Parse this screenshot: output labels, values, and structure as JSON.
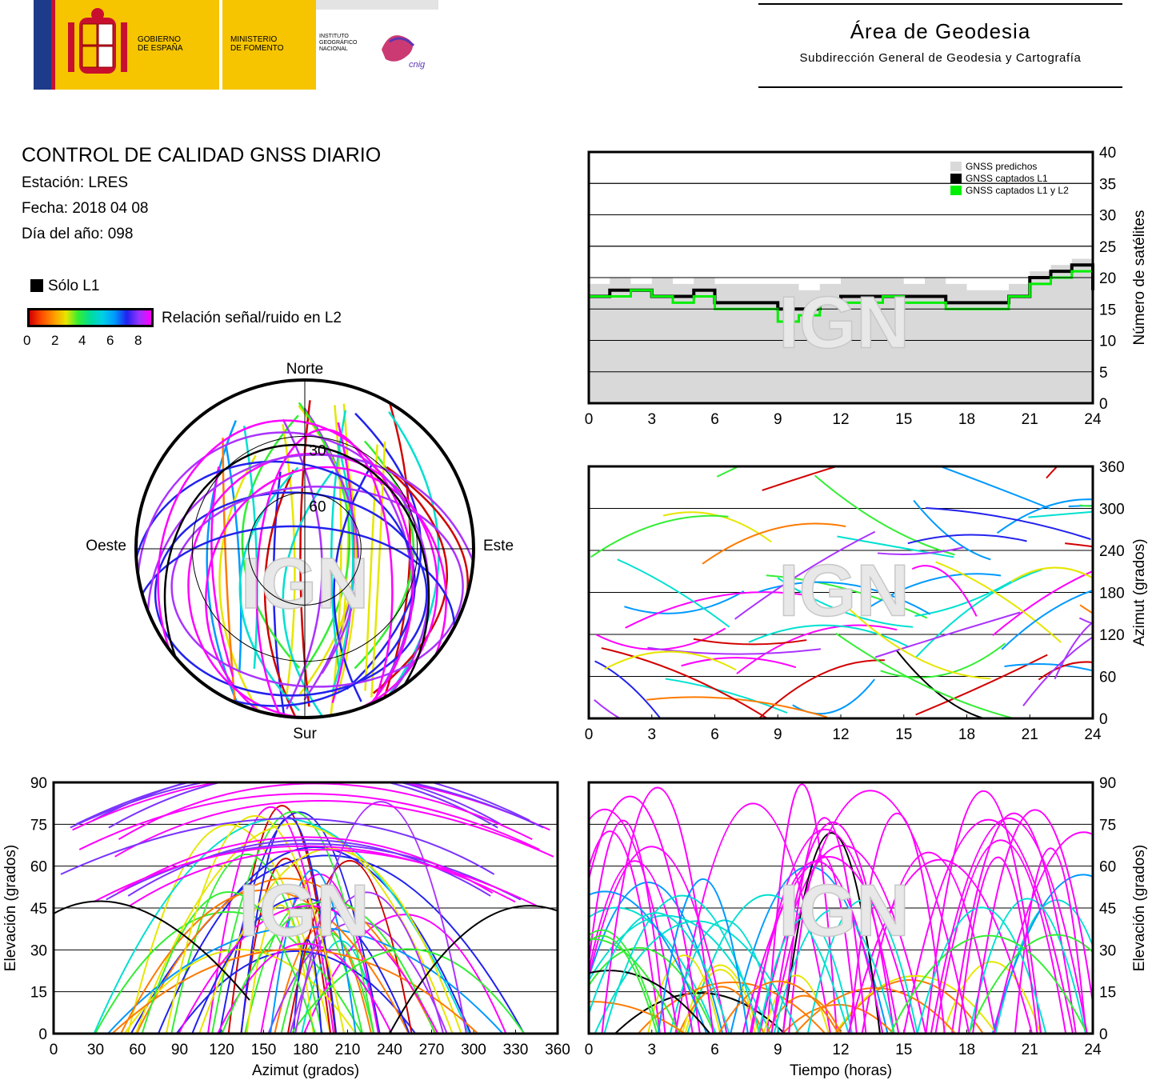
{
  "header": {
    "org1": [
      "GOBIERNO",
      "DE ESPAÑA"
    ],
    "org2": [
      "MINISTERIO",
      "DE FOMENTO"
    ],
    "org3": [
      "INSTITUTO",
      "GEOGRÁFICO",
      "NACIONAL"
    ],
    "logo_text": "cnig",
    "area_title": "Área de Geodesia",
    "area_subtitle": "Subdirección General de Geodesia y Cartografía"
  },
  "report": {
    "title": "CONTROL DE CALIDAD GNSS DIARIO",
    "station": "Estación: LRES",
    "date": "Fecha: 2018 04 08",
    "doy": "Día del año: 098",
    "legend_l1": "Sólo L1",
    "colorbar_label": "Relación señal/ruido en L2",
    "colorbar_ticks": [
      "0",
      "2",
      "4",
      "6",
      "8"
    ],
    "watermark": "IGN"
  },
  "colors": {
    "predicted": "#d9d9d9",
    "l1": "#000000",
    "l1l2": "#00ee00",
    "snr_palette": [
      "#d20000",
      "#ff7a00",
      "#e6e600",
      "#33ee33",
      "#00e0d0",
      "#0099ff",
      "#2222ee",
      "#aa33ff",
      "#ff00ff"
    ]
  },
  "chart_data": [
    {
      "id": "sat-count",
      "type": "area",
      "ylabel": "Número de satélites",
      "xlim": [
        0,
        24
      ],
      "ylim": [
        0,
        40
      ],
      "xticks": [
        "0",
        "3",
        "6",
        "9",
        "12",
        "15",
        "18",
        "21",
        "24"
      ],
      "yticks": [
        "0",
        "5",
        "10",
        "15",
        "20",
        "25",
        "30",
        "35",
        "40"
      ],
      "grid": true,
      "legend_position": "top-right",
      "x": [
        0,
        1,
        2,
        3,
        4,
        5,
        6,
        7,
        8,
        9,
        10,
        11,
        12,
        13,
        14,
        15,
        16,
        17,
        18,
        19,
        20,
        21,
        22,
        23,
        24
      ],
      "series": [
        {
          "name": "GNSS predichos",
          "values": [
            19,
            20,
            19,
            20,
            19,
            20,
            19,
            19,
            19,
            19,
            18,
            19,
            20,
            20,
            20,
            19,
            20,
            19,
            18,
            18,
            19,
            21,
            22,
            23,
            21
          ]
        },
        {
          "name": "GNSS captados L1",
          "values": [
            17,
            18,
            18,
            17,
            17,
            18,
            16,
            16,
            16,
            15,
            15,
            16,
            17,
            17,
            17,
            17,
            17,
            16,
            16,
            16,
            17,
            20,
            21,
            22,
            18
          ]
        },
        {
          "name": "GNSS captados L1 y L2",
          "values": [
            17,
            17,
            18,
            17,
            16,
            17,
            15,
            15,
            15,
            13,
            14,
            16,
            16,
            16,
            17,
            16,
            16,
            15,
            15,
            15,
            17,
            19,
            20,
            21,
            18
          ]
        }
      ]
    },
    {
      "id": "skyplot",
      "type": "scatter",
      "labels": {
        "north": "Norte",
        "south": "Sur",
        "east": "Este",
        "west": "Oeste"
      },
      "rings": [
        "30",
        "60"
      ],
      "note": "polar plot of satellite tracks colored by SNR"
    },
    {
      "id": "azimuth-time",
      "type": "scatter",
      "ylabel": "Azimut (grados)",
      "xlim": [
        0,
        24
      ],
      "ylim": [
        0,
        360
      ],
      "xticks": [
        "0",
        "3",
        "6",
        "9",
        "12",
        "15",
        "18",
        "21",
        "24"
      ],
      "yticks": [
        "0",
        "60",
        "120",
        "180",
        "240",
        "300",
        "360"
      ],
      "grid": true
    },
    {
      "id": "elev-azimuth",
      "type": "scatter",
      "xlabel": "Azimut (grados)",
      "ylabel": "Elevación (grados)",
      "xlim": [
        0,
        360
      ],
      "ylim": [
        0,
        90
      ],
      "xticks": [
        "0",
        "30",
        "60",
        "90",
        "120",
        "150",
        "180",
        "210",
        "240",
        "270",
        "300",
        "330",
        "360"
      ],
      "yticks": [
        "0",
        "15",
        "30",
        "45",
        "60",
        "75",
        "90"
      ],
      "grid": true
    },
    {
      "id": "elev-time",
      "type": "scatter",
      "xlabel": "Tiempo (horas)",
      "ylabel": "Elevación (grados)",
      "xlim": [
        0,
        24
      ],
      "ylim": [
        0,
        90
      ],
      "xticks": [
        "0",
        "3",
        "6",
        "9",
        "12",
        "15",
        "18",
        "21",
        "24"
      ],
      "yticks": [
        "0",
        "15",
        "30",
        "45",
        "60",
        "75",
        "90"
      ],
      "grid": true
    }
  ]
}
